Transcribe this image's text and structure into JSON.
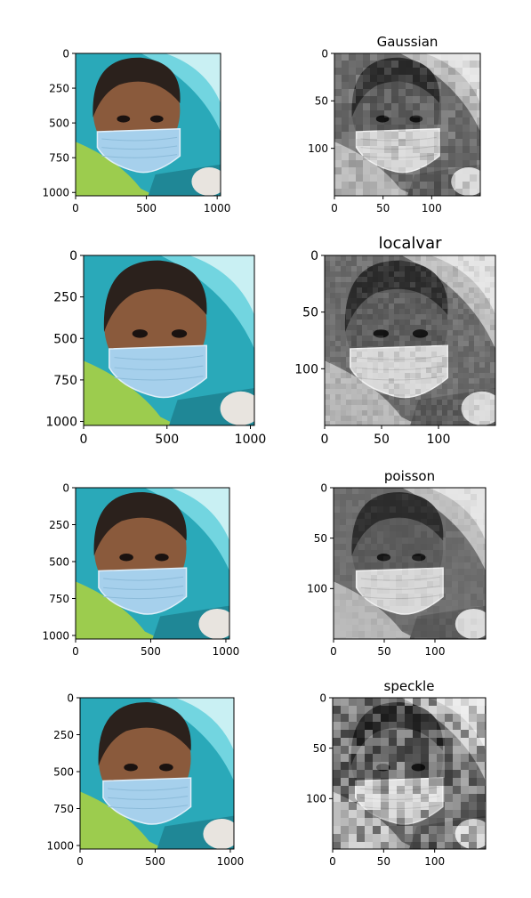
{
  "figure": {
    "colors": {
      "background": "#ffffff",
      "axis": "#000000",
      "cyan_bg": "#2aa9b9",
      "cyan_light": "#7fdde6",
      "skin": "#8a5a3c",
      "skin_dark": "#4a2f22",
      "hair": "#2b211c",
      "mask": "#a6d0ec",
      "mask_edge": "#dfeef9",
      "shirt": "#9ccc4e",
      "gray_bg": "#7a7a7a"
    }
  },
  "chart_data": [
    {
      "type": "image",
      "panel": "row1-left",
      "title": "",
      "image_kind": "color photo",
      "extent": [
        0,
        1024
      ],
      "xticks": [
        "0",
        "500",
        "1000"
      ],
      "yticks": [
        "0",
        "250",
        "500",
        "750",
        "1000"
      ],
      "xtick_values": [
        0,
        500,
        1000
      ],
      "ytick_values": [
        0,
        250,
        500,
        750,
        1000
      ]
    },
    {
      "type": "image",
      "panel": "row1-right",
      "title": "Gaussian",
      "image_kind": "grayscale",
      "extent": [
        0,
        150
      ],
      "xticks": [
        "0",
        "50",
        "100"
      ],
      "yticks": [
        "0",
        "50",
        "100"
      ],
      "xtick_values": [
        0,
        50,
        100
      ],
      "ytick_values": [
        0,
        50,
        100
      ],
      "noise": 18,
      "block": 8
    },
    {
      "type": "image",
      "panel": "row2-left",
      "title": "",
      "image_kind": "color photo",
      "extent": [
        0,
        1024
      ],
      "xticks": [
        "0",
        "500",
        "1000"
      ],
      "yticks": [
        "0",
        "250",
        "500",
        "750",
        "1000"
      ],
      "xtick_values": [
        0,
        500,
        1000
      ],
      "ytick_values": [
        0,
        250,
        500,
        750,
        1000
      ]
    },
    {
      "type": "image",
      "panel": "row2-right",
      "title": "localvar",
      "image_kind": "grayscale",
      "extent": [
        0,
        150
      ],
      "xticks": [
        "0",
        "50",
        "100"
      ],
      "yticks": [
        "0",
        "50",
        "100"
      ],
      "xtick_values": [
        0,
        50,
        100
      ],
      "ytick_values": [
        0,
        50,
        100
      ],
      "noise": 12,
      "block": 6
    },
    {
      "type": "image",
      "panel": "row3-left",
      "title": "",
      "image_kind": "color photo",
      "extent": [
        0,
        1024
      ],
      "xticks": [
        "0",
        "500",
        "1000"
      ],
      "yticks": [
        "0",
        "250",
        "500",
        "750",
        "1000"
      ],
      "xtick_values": [
        0,
        500,
        1000
      ],
      "ytick_values": [
        0,
        250,
        500,
        750,
        1000
      ]
    },
    {
      "type": "image",
      "panel": "row3-right",
      "title": "poisson",
      "image_kind": "grayscale",
      "extent": [
        0,
        150
      ],
      "xticks": [
        "0",
        "50",
        "100"
      ],
      "yticks": [
        "0",
        "50",
        "100"
      ],
      "xtick_values": [
        0,
        50,
        100
      ],
      "ytick_values": [
        0,
        50,
        100
      ],
      "noise": 6,
      "block": 7
    },
    {
      "type": "image",
      "panel": "row4-left",
      "title": "",
      "image_kind": "color photo",
      "extent": [
        0,
        1024
      ],
      "xticks": [
        "0",
        "500",
        "1000"
      ],
      "yticks": [
        "0",
        "250",
        "500",
        "750",
        "1000"
      ],
      "xtick_values": [
        0,
        500,
        1000
      ],
      "ytick_values": [
        0,
        250,
        500,
        750,
        1000
      ]
    },
    {
      "type": "image",
      "panel": "row4-right",
      "title": "speckle",
      "image_kind": "grayscale",
      "extent": [
        0,
        150
      ],
      "xticks": [
        "0",
        "50",
        "100"
      ],
      "yticks": [
        "0",
        "50",
        "100"
      ],
      "xtick_values": [
        0,
        50,
        100
      ],
      "ytick_values": [
        0,
        50,
        100
      ],
      "noise": 45,
      "block": 9
    }
  ]
}
